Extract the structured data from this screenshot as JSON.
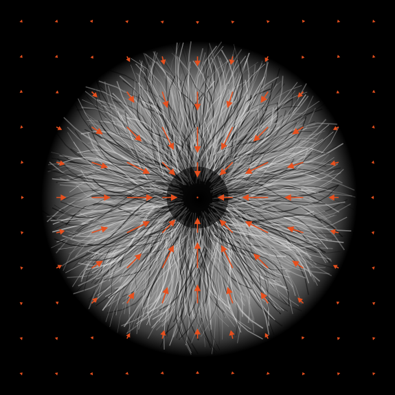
{
  "chart_data": {
    "type": "quiver",
    "color": "#e8501e",
    "x": [
      -5,
      -4,
      -3,
      -2,
      -1,
      0,
      1,
      2,
      3,
      4,
      5
    ],
    "y": [
      5,
      4,
      3,
      2,
      1,
      0,
      -1,
      -2,
      -3,
      -4,
      -5
    ],
    "xlim": [
      -5.6,
      5.6
    ],
    "ylim": [
      -5.6,
      5.6
    ],
    "u": [
      [
        0.02,
        0.02,
        0.01,
        0.01,
        0.01,
        0,
        -0.01,
        -0.01,
        -0.01,
        -0.02,
        -0.02
      ],
      [
        0.02,
        0.02,
        0.03,
        0.07,
        0.05,
        0,
        -0.05,
        -0.07,
        -0.03,
        -0.02,
        -0.02
      ],
      [
        0.02,
        0.04,
        0.14,
        0.19,
        0.14,
        0,
        -0.14,
        -0.19,
        -0.14,
        -0.04,
        -0.02
      ],
      [
        0.03,
        0.13,
        0.29,
        0.39,
        0.31,
        0,
        -0.31,
        -0.39,
        -0.29,
        -0.13,
        -0.03
      ],
      [
        0.04,
        0.21,
        0.43,
        0.62,
        0.35,
        0,
        -0.35,
        -0.62,
        -0.43,
        -0.21,
        -0.04
      ],
      [
        0.05,
        0.25,
        0.5,
        0.7,
        0.4,
        0,
        -0.4,
        -0.7,
        -0.5,
        -0.25,
        -0.05
      ],
      [
        0.04,
        0.21,
        0.43,
        0.62,
        0.35,
        0,
        -0.35,
        -0.62,
        -0.43,
        -0.21,
        -0.04
      ],
      [
        0.03,
        0.13,
        0.29,
        0.39,
        0.31,
        0,
        -0.31,
        -0.39,
        -0.29,
        -0.13,
        -0.03
      ],
      [
        0.02,
        0.04,
        0.14,
        0.19,
        0.14,
        0,
        -0.14,
        -0.19,
        -0.14,
        -0.04,
        -0.02
      ],
      [
        0.02,
        0.02,
        0.03,
        0.07,
        0.05,
        0,
        -0.05,
        -0.07,
        -0.03,
        -0.02,
        -0.02
      ],
      [
        0.02,
        0.02,
        0.01,
        0.01,
        0.01,
        0,
        -0.01,
        -0.01,
        -0.01,
        -0.02,
        -0.02
      ]
    ],
    "v": [
      [
        -0.02,
        -0.02,
        -0.02,
        -0.03,
        -0.04,
        -0.05,
        -0.04,
        -0.03,
        -0.02,
        -0.02,
        -0.02
      ],
      [
        -0.02,
        -0.02,
        -0.04,
        -0.13,
        -0.21,
        -0.25,
        -0.21,
        -0.13,
        -0.04,
        -0.02,
        -0.02
      ],
      [
        -0.01,
        -0.03,
        -0.14,
        -0.29,
        -0.43,
        -0.5,
        -0.43,
        -0.29,
        -0.14,
        -0.03,
        -0.01
      ],
      [
        -0.01,
        -0.07,
        -0.19,
        -0.39,
        -0.62,
        -0.7,
        -0.62,
        -0.39,
        -0.19,
        -0.07,
        -0.01
      ],
      [
        -0.01,
        -0.05,
        -0.14,
        -0.31,
        -0.35,
        -0.4,
        -0.35,
        -0.31,
        -0.14,
        -0.05,
        -0.01
      ],
      [
        0,
        0,
        0,
        0,
        0,
        0,
        0,
        0,
        0,
        0,
        0
      ],
      [
        0.01,
        0.05,
        0.14,
        0.31,
        0.35,
        0.4,
        0.35,
        0.31,
        0.14,
        0.05,
        0.01
      ],
      [
        0.01,
        0.07,
        0.19,
        0.39,
        0.62,
        0.7,
        0.62,
        0.39,
        0.19,
        0.07,
        0.01
      ],
      [
        0.01,
        0.03,
        0.14,
        0.29,
        0.43,
        0.5,
        0.43,
        0.29,
        0.14,
        0.03,
        0.01
      ],
      [
        0.02,
        0.02,
        0.04,
        0.13,
        0.21,
        0.25,
        0.21,
        0.13,
        0.04,
        0.02,
        0.02
      ],
      [
        0.02,
        0.02,
        0.02,
        0.03,
        0.04,
        0.05,
        0.04,
        0.03,
        0.02,
        0.02,
        0.02
      ]
    ]
  }
}
